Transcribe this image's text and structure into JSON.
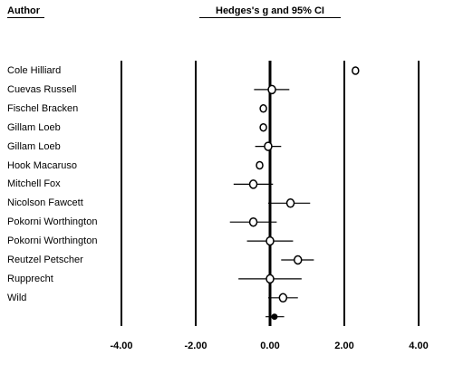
{
  "headers": {
    "author": "Author",
    "effect": "Hedges's g and 95% CI"
  },
  "chart_data": {
    "type": "forest",
    "title": "Hedges's g and 95% CI",
    "xlabel": "",
    "ylabel": "Author",
    "xlim": [
      -4.0,
      4.0
    ],
    "xticks": [
      "-4.00",
      "-2.00",
      "0.00",
      "2.00",
      "4.00"
    ],
    "grid": true,
    "studies": [
      {
        "author": "Cole Hilliard",
        "g": 2.3,
        "lo": 2.3,
        "hi": 2.3
      },
      {
        "author": "Cuevas Russell",
        "g": 0.05,
        "lo": -0.43,
        "hi": 0.52
      },
      {
        "author": "Fischel Bracken",
        "g": -0.18,
        "lo": -0.18,
        "hi": -0.18
      },
      {
        "author": "Gillam Loeb",
        "g": -0.18,
        "lo": -0.18,
        "hi": -0.18
      },
      {
        "author": "Gillam Loeb",
        "g": -0.05,
        "lo": -0.4,
        "hi": 0.3
      },
      {
        "author": "Hook Macaruso",
        "g": -0.28,
        "lo": -0.28,
        "hi": -0.28
      },
      {
        "author": "Mitchell Fox",
        "g": -0.45,
        "lo": -0.98,
        "hi": 0.08
      },
      {
        "author": "Nicolson Fawcett",
        "g": 0.55,
        "lo": -0.05,
        "hi": 1.08
      },
      {
        "author": "Pokorni Worthington",
        "g": -0.45,
        "lo": -1.08,
        "hi": 0.18
      },
      {
        "author": "Pokorni Worthington",
        "g": 0.0,
        "lo": -0.62,
        "hi": 0.62
      },
      {
        "author": "Reutzel Petscher",
        "g": 0.75,
        "lo": 0.3,
        "hi": 1.18
      },
      {
        "author": "Rupprecht",
        "g": 0.0,
        "lo": -0.85,
        "hi": 0.85
      },
      {
        "author": "Wild",
        "g": 0.35,
        "lo": -0.05,
        "hi": 0.75
      }
    ],
    "summary": {
      "g": 0.12,
      "lo": -0.12,
      "hi": 0.38
    }
  }
}
